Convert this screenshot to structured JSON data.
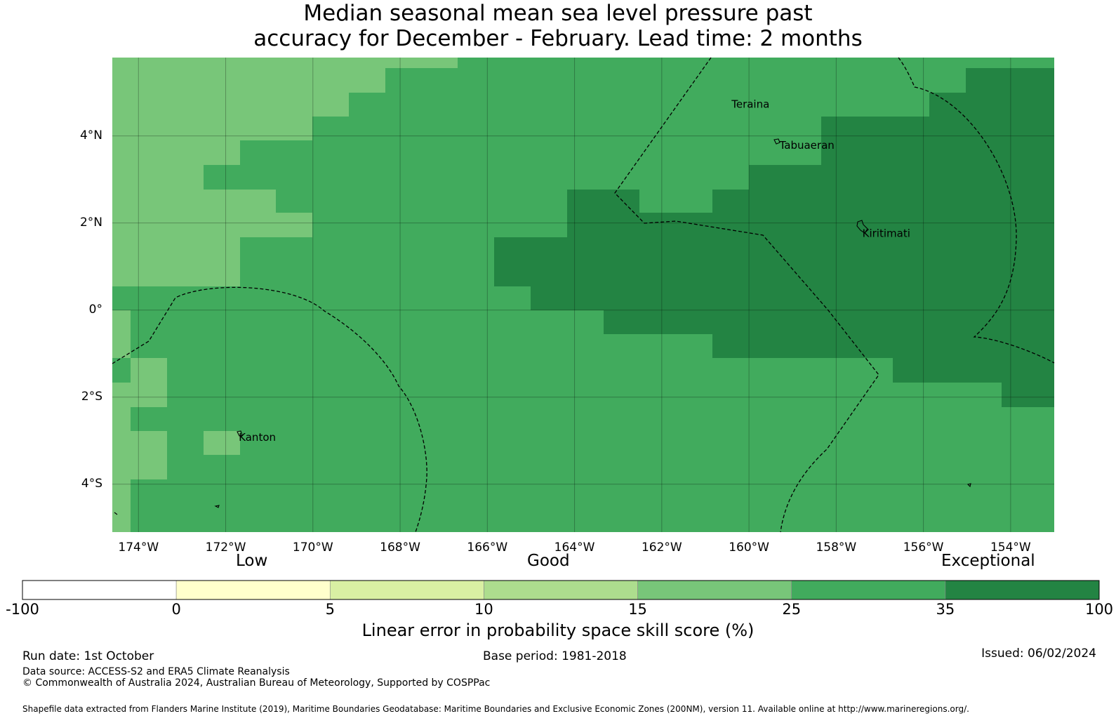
{
  "title_line1": "Median seasonal mean sea level pressure past",
  "title_line2": "accuracy for December - February. Lead time: 2 months",
  "map": {
    "lon_range": [
      -174.6,
      -153.0
    ],
    "lat_range": [
      -5.1,
      5.8
    ],
    "lat_labels": [
      {
        "lat": 4,
        "text": "4°N"
      },
      {
        "lat": 2,
        "text": "2°N"
      },
      {
        "lat": 0,
        "text": "0°"
      },
      {
        "lat": -2,
        "text": "2°S"
      },
      {
        "lat": -4,
        "text": "4°S"
      }
    ],
    "lon_labels": [
      {
        "lon": -174,
        "text": "174°W"
      },
      {
        "lon": -172,
        "text": "172°W"
      },
      {
        "lon": -170,
        "text": "170°W"
      },
      {
        "lon": -168,
        "text": "168°W"
      },
      {
        "lon": -166,
        "text": "166°W"
      },
      {
        "lon": -164,
        "text": "164°W"
      },
      {
        "lon": -162,
        "text": "162°W"
      },
      {
        "lon": -160,
        "text": "160°W"
      },
      {
        "lon": -158,
        "text": "158°W"
      },
      {
        "lon": -156,
        "text": "156°W"
      },
      {
        "lon": -154,
        "text": "154°W"
      }
    ],
    "places": [
      {
        "name": "Teraina",
        "lon": -160.4,
        "lat": 4.65
      },
      {
        "name": "Tabuaeran",
        "lon": -159.3,
        "lat": 3.7
      },
      {
        "name": "Kiritimati",
        "lon": -157.4,
        "lat": 1.68
      },
      {
        "name": "Kanton",
        "lon": -171.7,
        "lat": -3.0
      }
    ],
    "skill_colors": {
      "15-25": "#78c679",
      "25-35": "#41ab5d",
      "35-100": "#238443"
    }
  },
  "colorbar": {
    "categories": [
      "Low",
      "Good",
      "Exceptional"
    ],
    "bins": [
      {
        "from": "-100",
        "to": "0",
        "color": "#ffffff"
      },
      {
        "from": "0",
        "to": "5",
        "color": "#ffffcc"
      },
      {
        "from": "5",
        "to": "10",
        "color": "#d9f0a3"
      },
      {
        "from": "10",
        "to": "15",
        "color": "#addd8e"
      },
      {
        "from": "15",
        "to": "25",
        "color": "#78c679"
      },
      {
        "from": "25",
        "to": "35",
        "color": "#41ab5d"
      },
      {
        "from": "35",
        "to": "100",
        "color": "#238443"
      }
    ],
    "ticks": [
      "-100",
      "0",
      "5",
      "10",
      "15",
      "25",
      "35",
      "100"
    ],
    "label": "Linear error in probability space skill score (%)"
  },
  "footer": {
    "run_date": "Run date: 1st October",
    "base_period": "Base period: 1981-2018",
    "issued": "Issued: 06/02/2024",
    "data_source": "Data source: ACCESS-S2 and ERA5 Climate Reanalysis",
    "copyright": "© Commonwealth of Australia 2024, Australian Bureau of Meteorology, Supported by COSPPac",
    "shapefile": "Shapefile data extracted from Flanders Marine Institute (2019), Maritime Boundaries Geodatabase: Maritime Boundaries and Exclusive Economic Zones (200NM), version 11. Available online at http://www.marineregions.org/."
  }
}
